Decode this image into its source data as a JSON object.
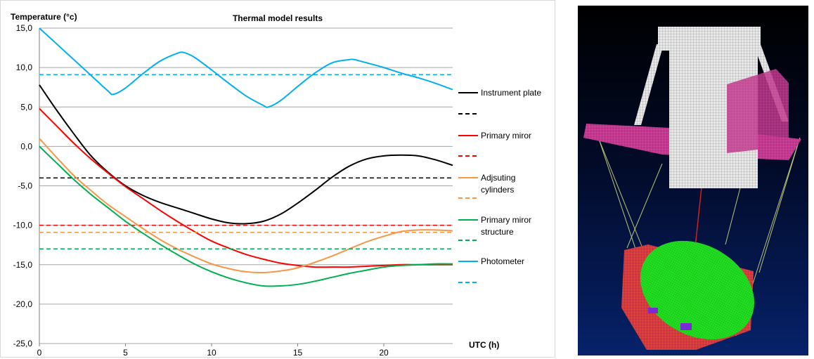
{
  "chart_data": {
    "type": "line",
    "title": "Thermal model results",
    "ylabel": "Temperature (°c)",
    "xlabel": "UTC (h)",
    "xlim": [
      0,
      24
    ],
    "ylim": [
      -25,
      15
    ],
    "xticks": [
      "0",
      "5",
      "10",
      "15",
      "20"
    ],
    "yticks": [
      "15,0",
      "10,0",
      "5,0",
      "0,0",
      "-5,0",
      "-10,0",
      "-15,0",
      "-20,0",
      "-25,0"
    ],
    "grid": "horizontal",
    "legend_position": "right",
    "series": [
      {
        "name": "Instrument plate",
        "color": "#000000",
        "style": "solid",
        "x": [
          0,
          1,
          2,
          3,
          4,
          5,
          6,
          7,
          8,
          9,
          10,
          11,
          12,
          13,
          14,
          15,
          16,
          17,
          18,
          19,
          20,
          21,
          22,
          23,
          24
        ],
        "y": [
          7.8,
          4.6,
          1.6,
          -1.2,
          -3.3,
          -5.0,
          -6.2,
          -7.1,
          -7.8,
          -8.5,
          -9.2,
          -9.7,
          -9.8,
          -9.5,
          -8.6,
          -7.2,
          -5.6,
          -3.9,
          -2.5,
          -1.6,
          -1.2,
          -1.1,
          -1.2,
          -1.7,
          -2.4
        ]
      },
      {
        "name": "",
        "color": "#000000",
        "style": "dashed",
        "x": [
          0,
          24
        ],
        "y": [
          -4.0,
          -4.0
        ]
      },
      {
        "name": "Primary miror",
        "color": "#ff0000",
        "style": "solid",
        "x": [
          0,
          1,
          2,
          3,
          4,
          5,
          6,
          7,
          8,
          9,
          10,
          11,
          12,
          13,
          14,
          15,
          16,
          17,
          18,
          19,
          20,
          21,
          22,
          23,
          24
        ],
        "y": [
          4.8,
          2.6,
          0.4,
          -1.6,
          -3.4,
          -5.1,
          -6.6,
          -8.1,
          -9.5,
          -10.8,
          -12.0,
          -12.9,
          -13.7,
          -14.3,
          -14.8,
          -15.1,
          -15.3,
          -15.3,
          -15.3,
          -15.2,
          -15.1,
          -15.0,
          -15.0,
          -15.0,
          -15.0
        ]
      },
      {
        "name": "",
        "color": "#ff0000",
        "style": "dashed",
        "x": [
          0,
          24
        ],
        "y": [
          -10.0,
          -10.0
        ]
      },
      {
        "name": "Adjsuting cylinders",
        "color": "#f79646",
        "style": "solid",
        "x": [
          0,
          1,
          2,
          3,
          4,
          5,
          6,
          7,
          8,
          9,
          10,
          11,
          12,
          13,
          14,
          15,
          16,
          17,
          18,
          19,
          20,
          21,
          22,
          23,
          24
        ],
        "y": [
          1.0,
          -1.4,
          -3.7,
          -5.6,
          -7.4,
          -8.9,
          -10.4,
          -11.8,
          -13.0,
          -14.0,
          -14.9,
          -15.5,
          -15.9,
          -16.0,
          -15.8,
          -15.4,
          -14.7,
          -13.9,
          -13.0,
          -12.1,
          -11.4,
          -10.8,
          -10.6,
          -10.6,
          -10.7
        ]
      },
      {
        "name": "",
        "color": "#f79646",
        "style": "dashed",
        "x": [
          0,
          24
        ],
        "y": [
          -10.9,
          -10.9
        ]
      },
      {
        "name": "Primary miror structure",
        "color": "#00b050",
        "style": "solid",
        "x": [
          0,
          1,
          2,
          3,
          4,
          5,
          6,
          7,
          8,
          9,
          10,
          11,
          12,
          13,
          14,
          15,
          16,
          17,
          18,
          19,
          20,
          21,
          22,
          23,
          24
        ],
        "y": [
          0.0,
          -2.1,
          -4.2,
          -6.1,
          -7.8,
          -9.5,
          -11.0,
          -12.4,
          -13.7,
          -14.9,
          -15.9,
          -16.7,
          -17.3,
          -17.7,
          -17.7,
          -17.5,
          -17.1,
          -16.6,
          -16.1,
          -15.7,
          -15.3,
          -15.1,
          -15.0,
          -14.9,
          -14.9
        ]
      },
      {
        "name": "",
        "color": "#00b050",
        "style": "dashed",
        "x": [
          0,
          24
        ],
        "y": [
          -13.0,
          -13.0
        ]
      },
      {
        "name": "Photometer",
        "color": "#00b0f0",
        "style": "solid",
        "x": [
          0,
          1,
          2,
          3,
          4,
          4.3,
          5,
          6,
          7,
          8,
          8.4,
          9,
          10,
          11,
          12,
          13,
          13.3,
          14,
          15,
          16,
          17,
          18,
          18.3,
          19,
          20,
          21,
          22,
          23,
          24
        ],
        "y": [
          15.0,
          13.0,
          11.0,
          9.0,
          7.0,
          6.6,
          7.4,
          9.2,
          10.8,
          11.8,
          11.9,
          11.3,
          9.7,
          8.0,
          6.4,
          5.2,
          5.0,
          5.8,
          7.6,
          9.3,
          10.6,
          11.0,
          11.0,
          10.6,
          10.0,
          9.3,
          8.7,
          8.0,
          7.2
        ]
      },
      {
        "name": "",
        "color": "#00b0f0",
        "style": "dashed",
        "x": [
          0,
          24
        ],
        "y": [
          9.1,
          9.1
        ]
      }
    ]
  }
}
